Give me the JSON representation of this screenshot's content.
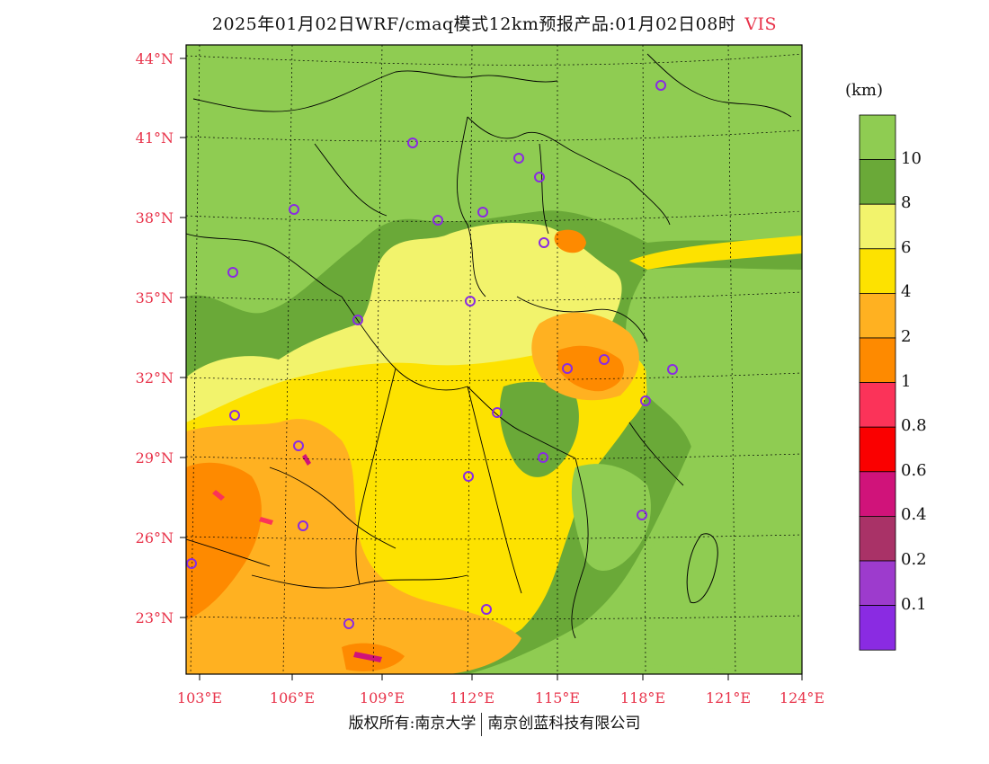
{
  "title": {
    "main": "2025年01月02日WRF/cmaq模式12km预报产品:01月02日08时",
    "variable": "VIS"
  },
  "footer": {
    "left": "版权所有:南京大学",
    "right": "南京创蓝科技有限公司"
  },
  "colorbar": {
    "unit": "(km)",
    "labels": [
      "10",
      "8",
      "6",
      "4",
      "2",
      "1",
      "0.8",
      "0.6",
      "0.4",
      "0.2",
      "0.1"
    ],
    "colors": [
      "#8fcc52",
      "#6aa938",
      "#f2f36c",
      "#fde200",
      "#ffb121",
      "#fe8a00",
      "#fb3359",
      "#fa0000",
      "#d0137a",
      "#a93267",
      "#9d3bcd",
      "#8a2be2"
    ]
  },
  "axes": {
    "lon_labels": [
      "103°E",
      "106°E",
      "109°E",
      "112°E",
      "115°E",
      "118°E",
      "121°E",
      "124°E"
    ],
    "lat_labels": [
      "44°N",
      "41°N",
      "38°N",
      "35°N",
      "32°N",
      "29°N",
      "26°N",
      "23°N"
    ],
    "label_color": "#e8334a"
  },
  "colors": {
    "bg_green": "#8fcc52",
    "dark_green": "#6aa938",
    "light_yellow": "#f2f36c",
    "yellow": "#fde200",
    "light_orange": "#ffb121",
    "orange": "#fe8a00",
    "pink": "#fb3359",
    "red": "#fa0000",
    "magenta": "#d0137a",
    "station_ring": "#8a2be2"
  },
  "stations_count_note": ""
}
